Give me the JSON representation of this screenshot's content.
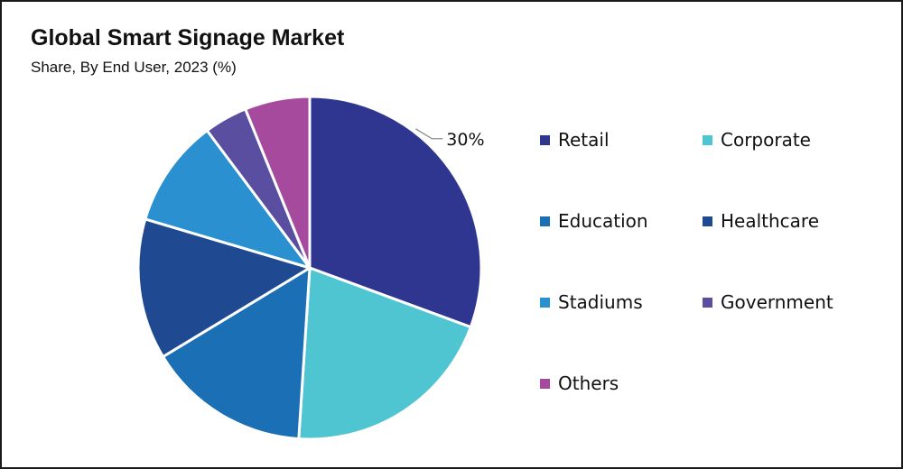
{
  "chart_data": {
    "type": "pie",
    "title": "Global Smart Signage Market",
    "subtitle": "Share, By End User, 2023 (%)",
    "legend_placement": "right",
    "slices": [
      {
        "name": "Retail",
        "value": 30,
        "color": "#2e3690",
        "label": "30%"
      },
      {
        "name": "Corporate",
        "value": 20,
        "color": "#4ec5d0"
      },
      {
        "name": "Education",
        "value": 15,
        "color": "#1a6fb5"
      },
      {
        "name": "Healthcare",
        "value": 13,
        "color": "#1f4a91"
      },
      {
        "name": "Stadiums",
        "value": 10,
        "color": "#2a90d0"
      },
      {
        "name": "Government",
        "value": 4,
        "color": "#5a4ea0"
      },
      {
        "name": "Others",
        "value": 6,
        "color": "#a54a9c"
      }
    ]
  }
}
